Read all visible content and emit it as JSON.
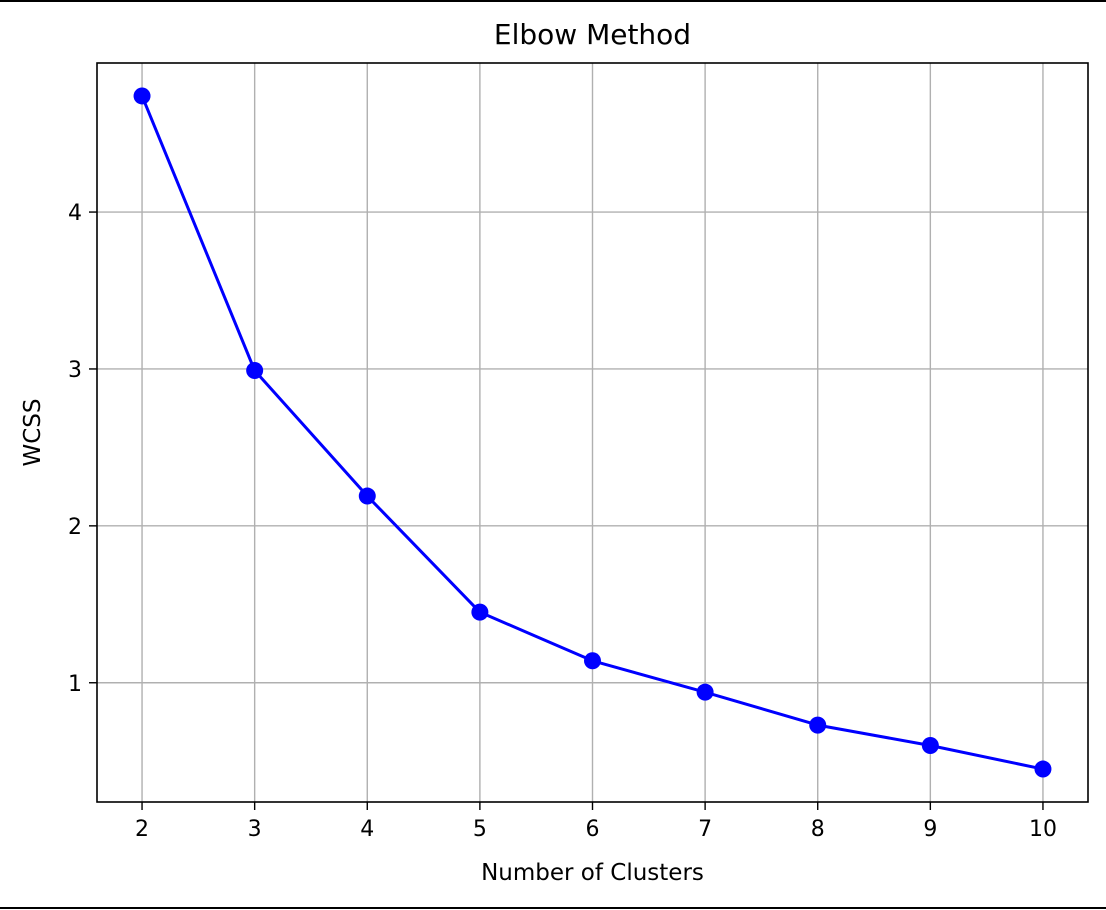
{
  "chart_data": {
    "type": "line",
    "title": "Elbow Method",
    "xlabel": "Number of Clusters",
    "ylabel": "WCSS",
    "x": [
      2,
      3,
      4,
      5,
      6,
      7,
      8,
      9,
      10
    ],
    "series": [
      {
        "values": [
          4.74,
          2.99,
          2.19,
          1.45,
          1.14,
          0.94,
          0.73,
          0.6,
          0.45
        ],
        "color": "#0000ff",
        "marker": "circle"
      }
    ],
    "xticks": [
      "2",
      "3",
      "4",
      "5",
      "6",
      "7",
      "8",
      "9",
      "10"
    ],
    "yticks": [
      "1",
      "2",
      "3",
      "4"
    ],
    "xlim": [
      1.6,
      10.4
    ],
    "ylim": [
      0.24,
      4.95
    ],
    "grid": true,
    "grid_color": "#b0b0b0"
  }
}
